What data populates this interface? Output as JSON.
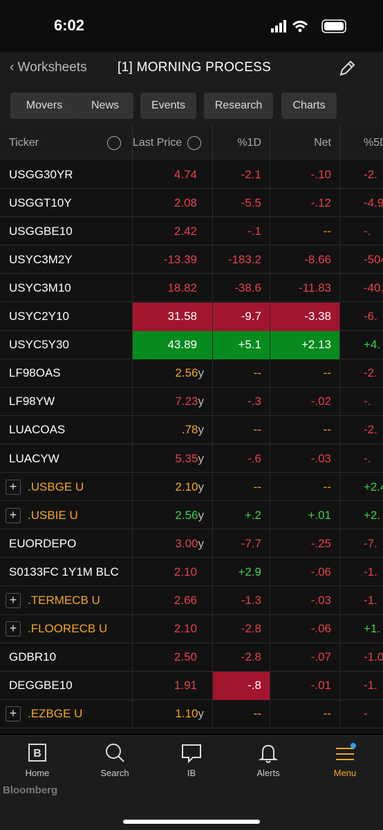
{
  "status": {
    "time": "6:02"
  },
  "header": {
    "back": "Worksheets",
    "title": "[1] MORNING PROCESS"
  },
  "tabs": [
    "Movers",
    "News",
    "Events",
    "Research",
    "Charts"
  ],
  "table": {
    "columns": [
      "Ticker",
      "Last Price",
      "%1D",
      "Net",
      "%5D"
    ],
    "rows": [
      {
        "ticker": "USGG30YR",
        "price": {
          "text": "4.74",
          "tone": "r"
        },
        "d1": {
          "text": "-2.1",
          "tone": "r"
        },
        "net": {
          "text": "-.10",
          "tone": "r"
        },
        "d5": {
          "text": "-2.",
          "tone": "r"
        }
      },
      {
        "ticker": "USGGT10Y",
        "price": {
          "text": "2.08",
          "tone": "r"
        },
        "d1": {
          "text": "-5.5",
          "tone": "r"
        },
        "net": {
          "text": "-.12",
          "tone": "r"
        },
        "d5": {
          "text": "-4.9",
          "tone": "r"
        }
      },
      {
        "ticker": "USGGBE10",
        "price": {
          "text": "2.42",
          "tone": "r"
        },
        "d1": {
          "text": "-.1",
          "tone": "r"
        },
        "net": {
          "text": "--",
          "tone": "o"
        },
        "d5": {
          "text": "-.",
          "tone": "r"
        }
      },
      {
        "ticker": "USYC3M2Y",
        "price": {
          "text": "-13.39",
          "tone": "r"
        },
        "d1": {
          "text": "-183.2",
          "tone": "r"
        },
        "net": {
          "text": "-8.66",
          "tone": "r"
        },
        "d5": {
          "text": "-504.",
          "tone": "r"
        }
      },
      {
        "ticker": "USYC3M10",
        "price": {
          "text": "18.82",
          "tone": "r"
        },
        "d1": {
          "text": "-38.6",
          "tone": "r"
        },
        "net": {
          "text": "-11.83",
          "tone": "r"
        },
        "d5": {
          "text": "-40.",
          "tone": "r"
        }
      },
      {
        "ticker": "USYC2Y10",
        "price": {
          "text": "31.58",
          "tone": "w",
          "bg": "red"
        },
        "d1": {
          "text": "-9.7",
          "tone": "w",
          "bg": "red"
        },
        "net": {
          "text": "-3.38",
          "tone": "w",
          "bg": "red"
        },
        "d5": {
          "text": "-6.",
          "tone": "r"
        }
      },
      {
        "ticker": "USYC5Y30",
        "price": {
          "text": "43.89",
          "tone": "w",
          "bg": "green"
        },
        "d1": {
          "text": "+5.1",
          "tone": "w",
          "bg": "green"
        },
        "net": {
          "text": "+2.13",
          "tone": "w",
          "bg": "green"
        },
        "d5": {
          "text": "+4.",
          "tone": "g"
        }
      },
      {
        "ticker": "LF98OAS",
        "price": {
          "text": "2.56",
          "suffix": "y",
          "tone": "o"
        },
        "d1": {
          "text": "--",
          "tone": "o"
        },
        "net": {
          "text": "--",
          "tone": "o"
        },
        "d5": {
          "text": "-2.",
          "tone": "r"
        }
      },
      {
        "ticker": "LF98YW",
        "price": {
          "text": "7.23",
          "suffix": "y",
          "tone": "r"
        },
        "d1": {
          "text": "-.3",
          "tone": "r"
        },
        "net": {
          "text": "-.02",
          "tone": "r"
        },
        "d5": {
          "text": "-.",
          "tone": "r"
        }
      },
      {
        "ticker": "LUACOAS",
        "price": {
          "text": ".78",
          "suffix": "y",
          "tone": "o"
        },
        "d1": {
          "text": "--",
          "tone": "o"
        },
        "net": {
          "text": "--",
          "tone": "o"
        },
        "d5": {
          "text": "-2.",
          "tone": "r"
        }
      },
      {
        "ticker": "LUACYW",
        "price": {
          "text": "5.35",
          "suffix": "y",
          "tone": "r"
        },
        "d1": {
          "text": "-.6",
          "tone": "r"
        },
        "net": {
          "text": "-.03",
          "tone": "r"
        },
        "d5": {
          "text": "-.",
          "tone": "r"
        }
      },
      {
        "ticker": ".USBGE U",
        "expand": true,
        "price": {
          "text": "2.10",
          "suffix": "y",
          "tone": "o"
        },
        "d1": {
          "text": "--",
          "tone": "o"
        },
        "net": {
          "text": "--",
          "tone": "o"
        },
        "d5": {
          "text": "+2.4",
          "tone": "g"
        }
      },
      {
        "ticker": ".USBIE U",
        "expand": true,
        "price": {
          "text": "2.56",
          "suffix": "y",
          "tone": "g"
        },
        "d1": {
          "text": "+.2",
          "tone": "g"
        },
        "net": {
          "text": "+.01",
          "tone": "g"
        },
        "d5": {
          "text": "+2.",
          "tone": "g"
        }
      },
      {
        "ticker": "EUORDEPO",
        "price": {
          "text": "3.00",
          "suffix": "y",
          "tone": "r"
        },
        "d1": {
          "text": "-7.7",
          "tone": "r"
        },
        "net": {
          "text": "-.25",
          "tone": "r"
        },
        "d5": {
          "text": "-7.",
          "tone": "r"
        }
      },
      {
        "ticker": "S0133FC 1Y1M BLC",
        "price": {
          "text": "2.10",
          "tone": "r"
        },
        "d1": {
          "text": "+2.9",
          "tone": "g"
        },
        "net": {
          "text": "-.06",
          "tone": "r"
        },
        "d5": {
          "text": "-1.",
          "tone": "r"
        }
      },
      {
        "ticker": ".TERMECB U",
        "expand": true,
        "price": {
          "text": "2.66",
          "tone": "r"
        },
        "d1": {
          "text": "-1.3",
          "tone": "r"
        },
        "net": {
          "text": "-.03",
          "tone": "r"
        },
        "d5": {
          "text": "-1.",
          "tone": "r"
        }
      },
      {
        "ticker": ".FLOORECB U",
        "expand": true,
        "price": {
          "text": "2.10",
          "tone": "r"
        },
        "d1": {
          "text": "-2.8",
          "tone": "r"
        },
        "net": {
          "text": "-.06",
          "tone": "r"
        },
        "d5": {
          "text": "+1.",
          "tone": "g"
        }
      },
      {
        "ticker": "GDBR10",
        "price": {
          "text": "2.50",
          "tone": "r"
        },
        "d1": {
          "text": "-2.8",
          "tone": "r"
        },
        "net": {
          "text": "-.07",
          "tone": "r"
        },
        "d5": {
          "text": "-1.0",
          "tone": "r"
        }
      },
      {
        "ticker": "DEGGBE10",
        "price": {
          "text": "1.91",
          "tone": "r"
        },
        "d1": {
          "text": "-.8",
          "tone": "w",
          "bg": "red"
        },
        "net": {
          "text": "-.01",
          "tone": "r"
        },
        "d5": {
          "text": "-1.",
          "tone": "r"
        }
      },
      {
        "ticker": ".EZBGE U",
        "expand": true,
        "price": {
          "text": "1.10",
          "suffix": "y",
          "tone": "o"
        },
        "d1": {
          "text": "--",
          "tone": "o"
        },
        "net": {
          "text": "--",
          "tone": "o"
        },
        "d5": {
          "text": "-",
          "tone": "r"
        }
      }
    ]
  },
  "nav": [
    "Home",
    "Search",
    "IB",
    "Alerts",
    "Menu"
  ],
  "footer": {
    "brand": "Bloomberg"
  }
}
